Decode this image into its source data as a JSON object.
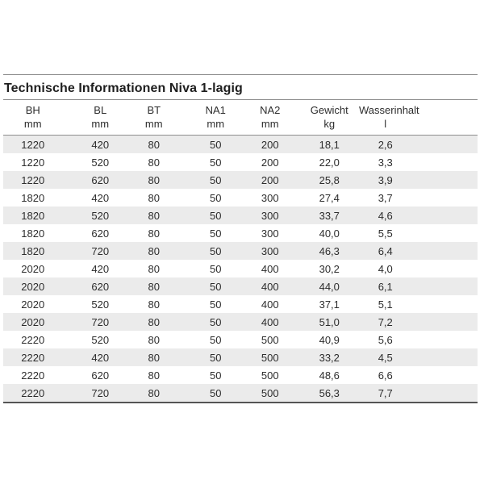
{
  "page": {
    "background": "#ffffff"
  },
  "section": {
    "title": "Technische Informationen Niva 1-lagig"
  },
  "table": {
    "columns": [
      {
        "label": "BH",
        "unit": "mm"
      },
      {
        "label": "BL",
        "unit": "mm"
      },
      {
        "label": "BT",
        "unit": "mm"
      },
      {
        "label": "NA1",
        "unit": "mm"
      },
      {
        "label": "NA2",
        "unit": "mm"
      },
      {
        "label": "Gewicht",
        "unit": "kg"
      },
      {
        "label": "Wasserinhalt",
        "unit": "l"
      }
    ],
    "rows": [
      [
        "1220",
        "420",
        "80",
        "50",
        "200",
        "18,1",
        "2,6"
      ],
      [
        "1220",
        "520",
        "80",
        "50",
        "200",
        "22,0",
        "3,3"
      ],
      [
        "1220",
        "620",
        "80",
        "50",
        "200",
        "25,8",
        "3,9"
      ],
      [
        "1820",
        "420",
        "80",
        "50",
        "300",
        "27,4",
        "3,7"
      ],
      [
        "1820",
        "520",
        "80",
        "50",
        "300",
        "33,7",
        "4,6"
      ],
      [
        "1820",
        "620",
        "80",
        "50",
        "300",
        "40,0",
        "5,5"
      ],
      [
        "1820",
        "720",
        "80",
        "50",
        "300",
        "46,3",
        "6,4"
      ],
      [
        "2020",
        "420",
        "80",
        "50",
        "400",
        "30,2",
        "4,0"
      ],
      [
        "2020",
        "620",
        "80",
        "50",
        "400",
        "44,0",
        "6,1"
      ],
      [
        "2020",
        "520",
        "80",
        "50",
        "400",
        "37,1",
        "5,1"
      ],
      [
        "2020",
        "720",
        "80",
        "50",
        "400",
        "51,0",
        "7,2"
      ],
      [
        "2220",
        "520",
        "80",
        "50",
        "500",
        "40,9",
        "5,6"
      ],
      [
        "2220",
        "420",
        "80",
        "50",
        "500",
        "33,2",
        "4,5"
      ],
      [
        "2220",
        "620",
        "80",
        "50",
        "500",
        "48,6",
        "6,6"
      ],
      [
        "2220",
        "720",
        "80",
        "50",
        "500",
        "56,3",
        "7,7"
      ]
    ],
    "colors": {
      "zebra": "#ebebeb",
      "text": "#2d2d2d",
      "rule": "#8e8e8e",
      "bottom_rule": "#555555"
    }
  }
}
